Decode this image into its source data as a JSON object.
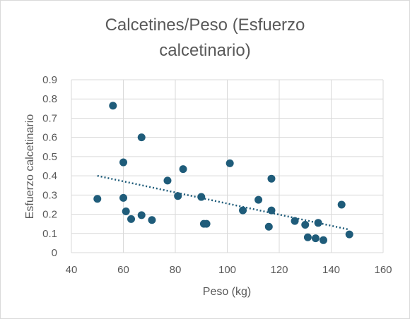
{
  "chart_data": {
    "type": "scatter",
    "title_lines": [
      "Calcetines/Peso (Esfuerzo",
      "calcetinario)"
    ],
    "xlabel": "Peso (kg)",
    "ylabel": "Esfuerzo calcetinario",
    "xlim": [
      40,
      160
    ],
    "ylim": [
      0,
      0.9
    ],
    "x_ticks": [
      40,
      60,
      80,
      100,
      120,
      140,
      160
    ],
    "y_ticks": [
      0,
      0.1,
      0.2,
      0.3,
      0.4,
      0.5,
      0.6,
      0.7,
      0.8,
      0.9
    ],
    "grid": true,
    "marker_color": "#1f5c7a",
    "trendline": {
      "type": "linear",
      "style": "dotted",
      "color": "#1f5c7a",
      "x_range": [
        50,
        147
      ],
      "y_range": [
        0.4,
        0.12
      ]
    },
    "points": [
      {
        "x": 50,
        "y": 0.28
      },
      {
        "x": 56,
        "y": 0.765
      },
      {
        "x": 60,
        "y": 0.47
      },
      {
        "x": 60,
        "y": 0.285
      },
      {
        "x": 61,
        "y": 0.215
      },
      {
        "x": 63,
        "y": 0.175
      },
      {
        "x": 67,
        "y": 0.6
      },
      {
        "x": 67,
        "y": 0.195
      },
      {
        "x": 71,
        "y": 0.17
      },
      {
        "x": 77,
        "y": 0.375
      },
      {
        "x": 81,
        "y": 0.295
      },
      {
        "x": 83,
        "y": 0.435
      },
      {
        "x": 90,
        "y": 0.29
      },
      {
        "x": 91,
        "y": 0.15
      },
      {
        "x": 92,
        "y": 0.15
      },
      {
        "x": 101,
        "y": 0.465
      },
      {
        "x": 106,
        "y": 0.22
      },
      {
        "x": 112,
        "y": 0.275
      },
      {
        "x": 116,
        "y": 0.135
      },
      {
        "x": 117,
        "y": 0.385
      },
      {
        "x": 117,
        "y": 0.22
      },
      {
        "x": 126,
        "y": 0.165
      },
      {
        "x": 130,
        "y": 0.145
      },
      {
        "x": 131,
        "y": 0.08
      },
      {
        "x": 134,
        "y": 0.075
      },
      {
        "x": 135,
        "y": 0.155
      },
      {
        "x": 137,
        "y": 0.065
      },
      {
        "x": 144,
        "y": 0.25
      },
      {
        "x": 147,
        "y": 0.095
      }
    ]
  }
}
